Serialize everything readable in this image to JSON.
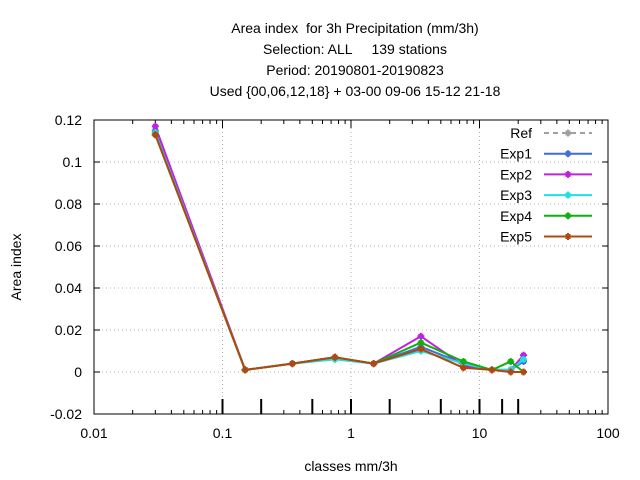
{
  "chart_data": {
    "type": "line",
    "title_lines": [
      "Area index  for 3h Precipitation (mm/3h)",
      "Selection: ALL     139 stations",
      "Period: 20190801-20190823",
      "Used {00,06,12,18} + 03-00 09-06 15-12 21-18"
    ],
    "xlabel": "classes mm/3h",
    "ylabel": "Area index",
    "x_scale": "log",
    "xlim": [
      0.01,
      100
    ],
    "ylim": [
      -0.02,
      0.12
    ],
    "x_ticks": [
      0.01,
      0.1,
      1,
      10,
      100
    ],
    "x_tick_labels": [
      "0.01",
      "0.1",
      "1",
      "10",
      "100"
    ],
    "y_ticks": [
      -0.02,
      0,
      0.02,
      0.04,
      0.06,
      0.08,
      0.1,
      0.12
    ],
    "y_tick_labels": [
      "-0.02",
      "0",
      "0.02",
      "0.04",
      "0.06",
      "0.08",
      "0.1",
      "0.12"
    ],
    "class_markers": [
      0.1,
      0.2,
      0.5,
      1,
      2,
      5,
      10,
      15,
      20
    ],
    "grid": true,
    "legend_position": "top-right",
    "x": [
      0.03,
      0.15,
      0.35,
      0.75,
      1.5,
      3.5,
      7.5,
      12.5,
      17.5,
      22
    ],
    "series": [
      {
        "name": "Ref",
        "color": "#a0a0a0",
        "dashed": true,
        "values": [
          null,
          null,
          null,
          null,
          null,
          null,
          null,
          null,
          null,
          null
        ]
      },
      {
        "name": "Exp1",
        "color": "#3f6fd0",
        "dashed": false,
        "values": [
          0.115,
          0.001,
          0.004,
          0.007,
          0.004,
          0.012,
          0.004,
          0.001,
          0.001,
          0.005
        ]
      },
      {
        "name": "Exp2",
        "color": "#c020e0",
        "dashed": false,
        "values": [
          0.117,
          0.001,
          0.004,
          0.007,
          0.004,
          0.017,
          0.003,
          0.001,
          0.001,
          0.008
        ]
      },
      {
        "name": "Exp3",
        "color": "#20e0e0",
        "dashed": false,
        "values": [
          0.114,
          0.001,
          0.004,
          0.006,
          0.004,
          0.01,
          0.004,
          0.001,
          0.001,
          0.006
        ]
      },
      {
        "name": "Exp4",
        "color": "#10b010",
        "dashed": false,
        "values": [
          0.113,
          0.001,
          0.004,
          0.007,
          0.004,
          0.014,
          0.005,
          0.001,
          0.005,
          0.0
        ]
      },
      {
        "name": "Exp5",
        "color": "#b04810",
        "dashed": false,
        "values": [
          0.113,
          0.001,
          0.004,
          0.007,
          0.004,
          0.011,
          0.002,
          0.001,
          0.0,
          0.0
        ]
      }
    ]
  }
}
